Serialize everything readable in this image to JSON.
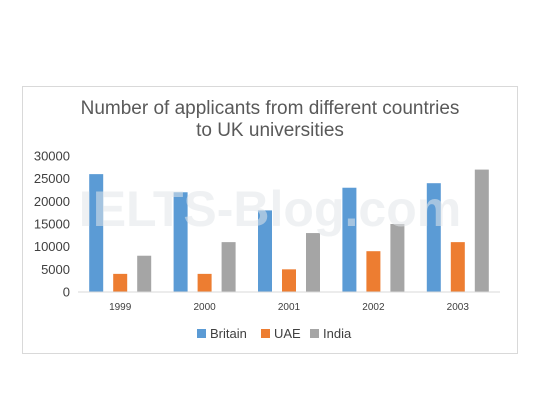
{
  "chart_data": {
    "type": "bar",
    "title": "Number of applicants from different countries to UK universities",
    "title_lines": [
      "Number of applicants from different countries",
      "to UK universities"
    ],
    "categories": [
      "1999",
      "2000",
      "2001",
      "2002",
      "2003"
    ],
    "series": [
      {
        "name": "Britain",
        "values": [
          26000,
          22000,
          18000,
          23000,
          24000
        ],
        "color": "#5b9bd5"
      },
      {
        "name": "UAE",
        "values": [
          4000,
          4000,
          5000,
          9000,
          11000
        ],
        "color": "#ed7d31"
      },
      {
        "name": "India",
        "values": [
          8000,
          11000,
          13000,
          15000,
          27000
        ],
        "color": "#a5a5a5"
      }
    ],
    "y_ticks": [
      "0",
      "5000",
      "10000",
      "15000",
      "20000",
      "25000",
      "30000"
    ],
    "ylim": [
      0,
      30000
    ],
    "xlabel": "",
    "ylabel": "",
    "grid": false,
    "legend_position": "bottom"
  },
  "watermark": "IELTS-Blog.com"
}
